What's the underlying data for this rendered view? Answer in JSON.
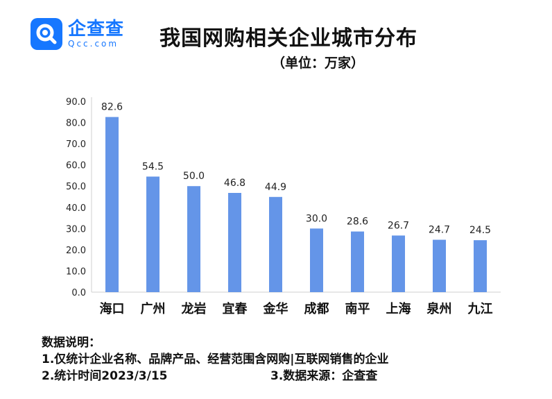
{
  "logo": {
    "cn": "企查查",
    "en": "Qcc.com"
  },
  "title": "我国网购相关企业城市分布",
  "subtitle": "（单位：万家）",
  "chart_data": {
    "type": "bar",
    "title": "我国网购相关企业城市分布",
    "unit": "（单位：万家）",
    "categories": [
      "海口",
      "广州",
      "龙岩",
      "宜春",
      "金华",
      "成都",
      "南平",
      "上海",
      "泉州",
      "九江"
    ],
    "values": [
      82.6,
      54.5,
      50.0,
      46.8,
      44.9,
      30.0,
      28.6,
      26.7,
      24.7,
      24.5
    ],
    "value_labels": [
      "82.6",
      "54.5",
      "50.0",
      "46.8",
      "44.9",
      "30.0",
      "28.6",
      "26.7",
      "24.7",
      "24.5"
    ],
    "ylim": [
      0,
      90
    ],
    "yticks": [
      "0.0",
      "10.0",
      "20.0",
      "30.0",
      "40.0",
      "50.0",
      "60.0",
      "70.0",
      "80.0",
      "90.0"
    ],
    "bar_color": "#6495e8",
    "grid": false
  },
  "notes": {
    "heading": "数据说明：",
    "line1": "1.仅统计企业名称、品牌产品、经营范围含网购|互联网销售的企业",
    "line2": "2.统计时间2023/3/15",
    "line3": "3.数据来源：企查查"
  }
}
